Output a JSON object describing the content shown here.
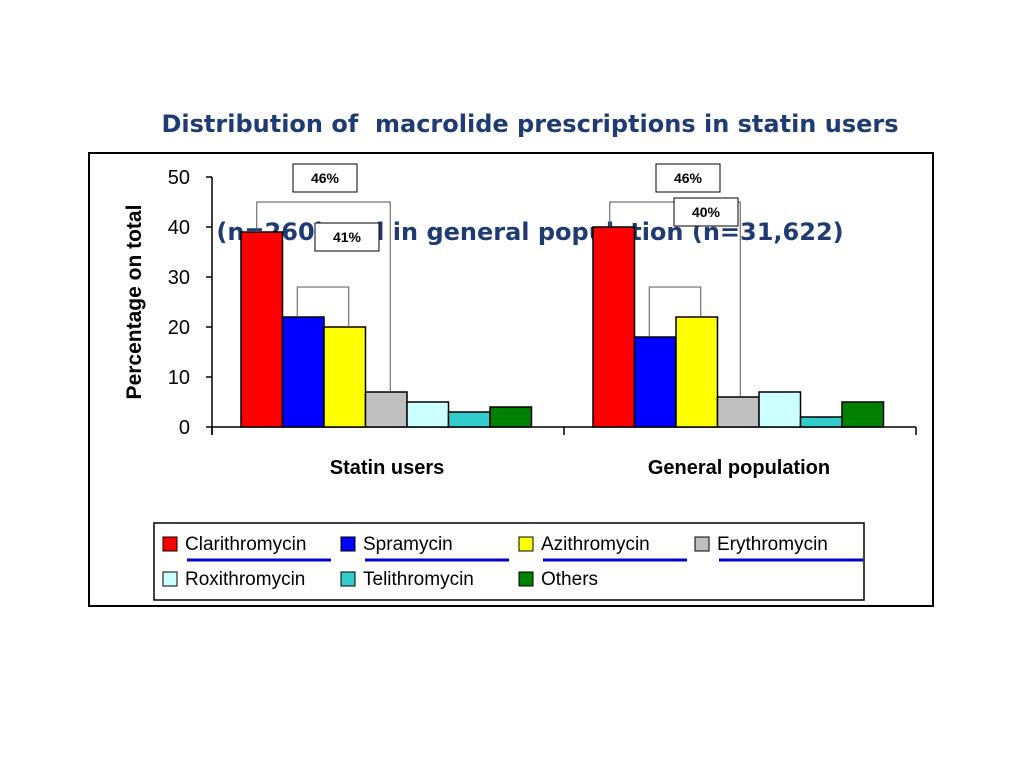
{
  "title": {
    "line1": "Distribution of  macrolide prescriptions in statin users",
    "line2": "(n=260) and in general population (n=31,622)"
  },
  "chart_data": {
    "type": "bar",
    "title": "Distribution of  macrolide prescriptions in statin users (n=260) and in general population (n=31,622)",
    "xlabel": "",
    "ylabel": "Percentage on total",
    "ylim": [
      0,
      50
    ],
    "yticks": [
      "0",
      "10",
      "20",
      "30",
      "40",
      "50"
    ],
    "categories": [
      "Statin users",
      "General population"
    ],
    "series": [
      {
        "name": "Clarithromycin",
        "color": "#ff0000",
        "values": [
          39,
          40
        ]
      },
      {
        "name": "Spramycin",
        "color": "#0000ff",
        "values": [
          22,
          18
        ]
      },
      {
        "name": "Azithromycin",
        "color": "#ffff00",
        "values": [
          20,
          22
        ]
      },
      {
        "name": "Erythromycin",
        "color": "#c0c0c0",
        "values": [
          7,
          6
        ]
      },
      {
        "name": "Roxithromycin",
        "color": "#ccffff",
        "values": [
          5,
          7
        ]
      },
      {
        "name": "Telithromycin",
        "color": "#33cccc",
        "values": [
          3,
          2
        ]
      },
      {
        "name": "Others",
        "color": "#008000",
        "values": [
          4,
          5
        ]
      }
    ],
    "annotations": [
      {
        "text": "46%",
        "group": "Statin users"
      },
      {
        "text": "41%",
        "group": "Statin users"
      },
      {
        "text": "46%",
        "group": "General population"
      },
      {
        "text": "40%",
        "group": "General population"
      }
    ],
    "grid": false,
    "legend": "bottom"
  },
  "colors": {
    "title": "#1f3b74",
    "legend_underline": "#0000cc"
  }
}
